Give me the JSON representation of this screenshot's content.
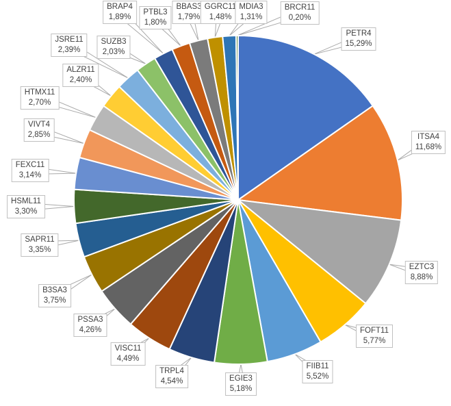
{
  "chart_data": {
    "type": "pie",
    "title": "",
    "legend_position": "none",
    "labels": "outside-with-leader-lines, format: ticker + percent (comma decimal)",
    "start_angle_deg": 0,
    "direction": "clockwise",
    "slices": [
      {
        "name": "PETR4",
        "value": 15.29,
        "percent_label": "15,29%",
        "color": "#4472C4"
      },
      {
        "name": "ITSA4",
        "value": 11.68,
        "percent_label": "11,68%",
        "color": "#ED7D31"
      },
      {
        "name": "EZTC3",
        "value": 8.88,
        "percent_label": "8,88%",
        "color": "#A5A5A5"
      },
      {
        "name": "FOFT11",
        "value": 5.77,
        "percent_label": "5,77%",
        "color": "#FFC000"
      },
      {
        "name": "FIIB11",
        "value": 5.52,
        "percent_label": "5,52%",
        "color": "#5B9BD5"
      },
      {
        "name": "EGIE3",
        "value": 5.18,
        "percent_label": "5,18%",
        "color": "#70AD47"
      },
      {
        "name": "TRPL4",
        "value": 4.54,
        "percent_label": "4,54%",
        "color": "#264478"
      },
      {
        "name": "VISC11",
        "value": 4.49,
        "percent_label": "4,49%",
        "color": "#9E480E"
      },
      {
        "name": "PSSA3",
        "value": 4.26,
        "percent_label": "4,26%",
        "color": "#636363"
      },
      {
        "name": "B3SA3",
        "value": 3.75,
        "percent_label": "3,75%",
        "color": "#997300"
      },
      {
        "name": "SAPR11",
        "value": 3.35,
        "percent_label": "3,35%",
        "color": "#255E91"
      },
      {
        "name": "HSML11",
        "value": 3.3,
        "percent_label": "3,30%",
        "color": "#43682B"
      },
      {
        "name": "FEXC11",
        "value": 3.14,
        "percent_label": "3,14%",
        "color": "#698ED0"
      },
      {
        "name": "VIVT4",
        "value": 2.85,
        "percent_label": "2,85%",
        "color": "#F1975A"
      },
      {
        "name": "HTMX11",
        "value": 2.7,
        "percent_label": "2,70%",
        "color": "#B7B7B7"
      },
      {
        "name": "ALZR11",
        "value": 2.4,
        "percent_label": "2,40%",
        "color": "#FFCD33"
      },
      {
        "name": "JSRE11",
        "value": 2.39,
        "percent_label": "2,39%",
        "color": "#7CAFDD"
      },
      {
        "name": "SUZB3",
        "value": 2.03,
        "percent_label": "2,03%",
        "color": "#8CC168"
      },
      {
        "name": "BRAP4",
        "value": 1.89,
        "percent_label": "1,89%",
        "color": "#2F5597"
      },
      {
        "name": "PTBL3",
        "value": 1.8,
        "percent_label": "1,80%",
        "color": "#C55A11"
      },
      {
        "name": "BBAS3",
        "value": 1.79,
        "percent_label": "1,79%",
        "color": "#7B7B7B"
      },
      {
        "name": "GGRC11",
        "value": 1.48,
        "percent_label": "1,48%",
        "color": "#BF9000"
      },
      {
        "name": "MDIA3",
        "value": 1.31,
        "percent_label": "1,31%",
        "color": "#2E75B6"
      },
      {
        "name": "BRCR11",
        "value": 0.2,
        "percent_label": "0,20%",
        "color": "#538135"
      }
    ]
  },
  "style": {
    "background": "#FFFFFF",
    "slice_border_color": "#FFFFFF",
    "label_text_color": "#404040",
    "label_border_color": "#BFBFBF",
    "leader_line_color": "#A9A9A9"
  }
}
